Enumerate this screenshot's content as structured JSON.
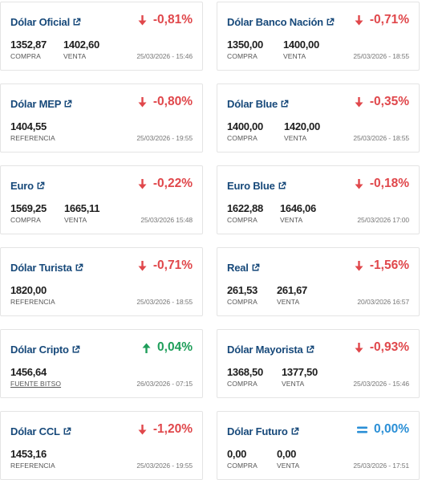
{
  "cards": [
    {
      "title": "Dólar Oficial",
      "change": "-0,81%",
      "direction": "down",
      "v1": "1352,87",
      "l1": "COMPRA",
      "v2": "1402,60",
      "l2": "VENTA",
      "date": "25/03/2026 - 15:46"
    },
    {
      "title": "Dólar Banco Nación",
      "change": "-0,71%",
      "direction": "down",
      "v1": "1350,00",
      "l1": "COMPRA",
      "v2": "1400,00",
      "l2": "VENTA",
      "date": "25/03/2026 - 18:55"
    },
    {
      "title": "Dólar MEP",
      "change": "-0,80%",
      "direction": "down",
      "v1": "1404,55",
      "l1": "REFERENCIA",
      "date": "25/03/2026 - 19:55"
    },
    {
      "title": "Dólar Blue",
      "change": "-0,35%",
      "direction": "down",
      "v1": "1400,00",
      "l1": "COMPRA",
      "v2": "1420,00",
      "l2": "VENTA",
      "date": "25/03/2026 - 18:55"
    },
    {
      "title": "Euro",
      "change": "-0,22%",
      "direction": "down",
      "v1": "1569,25",
      "l1": "COMPRA",
      "v2": "1665,11",
      "l2": "VENTA",
      "date": "25/03/2026 15:48"
    },
    {
      "title": "Euro Blue",
      "change": "-0,18%",
      "direction": "down",
      "v1": "1622,88",
      "l1": "COMPRA",
      "v2": "1646,06",
      "l2": "VENTA",
      "date": "25/03/2026 17:00"
    },
    {
      "title": "Dólar Turista",
      "change": "-0,71%",
      "direction": "down",
      "v1": "1820,00",
      "l1": "REFERENCIA",
      "date": "25/03/2026 - 18:55"
    },
    {
      "title": "Real",
      "change": "-1,56%",
      "direction": "down",
      "v1": "261,53",
      "l1": "COMPRA",
      "v2": "261,67",
      "l2": "VENTA",
      "date": "20/03/2026 16:57"
    },
    {
      "title": "Dólar Cripto",
      "change": "0,04%",
      "direction": "up",
      "v1": "1456,64",
      "l1": "FUENTE BITSO",
      "date": "26/03/2026 - 07:15"
    },
    {
      "title": "Dólar Mayorista",
      "change": "-0,93%",
      "direction": "down",
      "v1": "1368,50",
      "l1": "COMPRA",
      "v2": "1377,50",
      "l2": "VENTA",
      "date": "25/03/2026 - 15:46"
    },
    {
      "title": "Dólar CCL",
      "change": "-1,20%",
      "direction": "down",
      "v1": "1453,16",
      "l1": "REFERENCIA",
      "date": "25/03/2026 - 19:55"
    },
    {
      "title": "Dólar Futuro",
      "change": "0,00%",
      "direction": "eq",
      "v1": "0,00",
      "l1": "COMPRA",
      "v2": "0,00",
      "l2": "VENTA",
      "date": "25/03/2026 - 17:51"
    }
  ],
  "icons": {
    "external": "external-link-icon",
    "down": "arrow-down-icon",
    "up": "arrow-up-icon",
    "eq": "equals-icon"
  },
  "colors": {
    "title": "#17497a",
    "down": "#e0474b",
    "up": "#1e9e5a",
    "eq": "#2a8fd6"
  }
}
